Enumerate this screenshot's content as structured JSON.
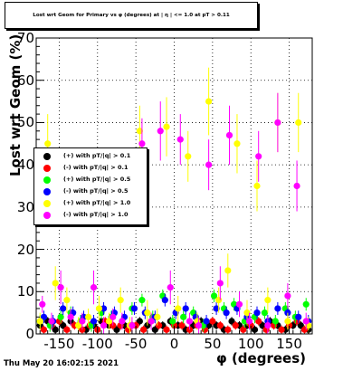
{
  "chart_data": {
    "type": "scatter",
    "title": "Lost wrt Geom for Primary vs φ (degrees) at | η | <= 1.0 at pT > 0.11",
    "xlabel": "φ (degrees)",
    "ylabel": "Lost wrt Geom (%)",
    "xlim": [
      -180,
      180
    ],
    "ylim": [
      0,
      70
    ],
    "x_ticks": [
      -150,
      -100,
      -50,
      0,
      50,
      100,
      150
    ],
    "y_ticks": [
      0,
      10,
      20,
      30,
      40,
      50,
      60,
      70
    ],
    "grid": true,
    "legend_position": "left-middle",
    "series": [
      {
        "name": "(+) with pT/|q| > 0.1",
        "color": "#000000",
        "x": [
          -175,
          -165,
          -155,
          -145,
          -135,
          -125,
          -115,
          -105,
          -95,
          -85,
          -75,
          -65,
          -55,
          -45,
          -35,
          -25,
          -15,
          -5,
          5,
          15,
          25,
          35,
          45,
          55,
          65,
          75,
          85,
          95,
          105,
          115,
          125,
          135,
          145,
          155,
          165,
          175
        ],
        "y": [
          2,
          3,
          1,
          2,
          3,
          2,
          1,
          2,
          3,
          2,
          1,
          2,
          2,
          3,
          2,
          1,
          2,
          3,
          2,
          1,
          2,
          3,
          2,
          2,
          1,
          3,
          2,
          2,
          1,
          2,
          3,
          2,
          1,
          2,
          2,
          1
        ],
        "err": [
          1,
          1,
          1,
          1,
          1,
          1,
          1,
          1,
          1,
          1,
          1,
          1,
          1,
          1,
          1,
          1,
          1,
          1,
          1,
          1,
          1,
          1,
          1,
          1,
          1,
          1,
          1,
          1,
          1,
          1,
          1,
          1,
          1,
          1,
          1,
          1
        ]
      },
      {
        "name": "(-) with pT/|q| > 0.1",
        "color": "#ff0000",
        "x": [
          -170,
          -160,
          -150,
          -140,
          -130,
          -120,
          -110,
          -100,
          -90,
          -80,
          -70,
          -60,
          -50,
          -40,
          -30,
          -20,
          -10,
          0,
          10,
          20,
          30,
          40,
          50,
          60,
          70,
          80,
          90,
          100,
          110,
          120,
          130,
          140,
          150,
          160,
          170
        ],
        "y": [
          1,
          2,
          3,
          1,
          2,
          1,
          2,
          1,
          3,
          2,
          2,
          1,
          2,
          1,
          3,
          2,
          1,
          2,
          2,
          1,
          2,
          1,
          3,
          2,
          1,
          2,
          1,
          2,
          3,
          1,
          2,
          1,
          2,
          3,
          1
        ],
        "err": [
          1,
          1,
          1,
          1,
          1,
          1,
          1,
          1,
          1,
          1,
          1,
          1,
          1,
          1,
          1,
          1,
          1,
          1,
          1,
          1,
          1,
          1,
          1,
          1,
          1,
          1,
          1,
          1,
          1,
          1,
          1,
          1,
          1,
          1,
          1
        ]
      },
      {
        "name": "(+) with pT/|q| > 0.5",
        "color": "#00ff00",
        "x": [
          -175,
          -162,
          -148,
          -135,
          -122,
          -108,
          -95,
          -82,
          -68,
          -55,
          -42,
          -28,
          -15,
          -2,
          12,
          25,
          38,
          52,
          65,
          78,
          92,
          105,
          118,
          132,
          145,
          158,
          172
        ],
        "y": [
          3,
          2,
          4,
          5,
          3,
          2,
          5,
          4,
          3,
          6,
          8,
          4,
          9,
          3,
          4,
          5,
          2,
          9,
          6,
          7,
          3,
          4,
          5,
          3,
          6,
          4,
          7
        ],
        "err": [
          1.5,
          1.5,
          1.5,
          1.5,
          1.5,
          1.5,
          1.5,
          1.5,
          1.5,
          1.5,
          1.5,
          1.5,
          1.5,
          1.5,
          1.5,
          1.5,
          1.5,
          1.5,
          1.5,
          1.5,
          1.5,
          1.5,
          1.5,
          1.5,
          1.5,
          1.5,
          1.5
        ]
      },
      {
        "name": "(-) with pT/|q| > 0.5",
        "color": "#0000ff",
        "x": [
          -170,
          -158,
          -145,
          -132,
          -118,
          -105,
          -92,
          -78,
          -65,
          -52,
          -38,
          -25,
          -12,
          2,
          15,
          28,
          42,
          55,
          68,
          82,
          95,
          108,
          122,
          135,
          148,
          162,
          175
        ],
        "y": [
          4,
          3,
          6,
          5,
          4,
          3,
          6,
          5,
          4,
          6,
          5,
          4,
          8,
          5,
          6,
          4,
          3,
          6,
          5,
          6,
          4,
          5,
          3,
          6,
          5,
          4,
          3
        ],
        "err": [
          1.5,
          1.5,
          1.5,
          1.5,
          1.5,
          1.5,
          1.5,
          1.5,
          1.5,
          1.5,
          1.5,
          1.5,
          1.5,
          1.5,
          1.5,
          1.5,
          1.5,
          1.5,
          1.5,
          1.5,
          1.5,
          1.5,
          1.5,
          1.5,
          1.5,
          1.5,
          1.5
        ]
      },
      {
        "name": "(+) with pT/|q| > 1.0",
        "color": "#ffff00",
        "x": [
          -175,
          -165,
          -155,
          -140,
          -125,
          -112,
          -98,
          -85,
          -70,
          -58,
          -45,
          -35,
          -22,
          -10,
          5,
          18,
          30,
          45,
          58,
          70,
          82,
          95,
          108,
          122,
          135,
          148,
          162,
          175
        ],
        "y": [
          3,
          45,
          12,
          8,
          2,
          4,
          6,
          3,
          8,
          2,
          48,
          5,
          4,
          49,
          6,
          42,
          3,
          55,
          8,
          15,
          45,
          5,
          35,
          8,
          50,
          3,
          50,
          2
        ],
        "err": [
          2,
          7,
          4,
          3,
          2,
          2,
          3,
          2,
          3,
          2,
          6,
          3,
          2,
          7,
          3,
          6,
          2,
          8,
          3,
          4,
          7,
          3,
          6,
          3,
          7,
          2,
          7,
          2
        ]
      },
      {
        "name": "(-) with pT/|q| > 1.0",
        "color": "#ff00ff",
        "x": [
          -172,
          -160,
          -148,
          -135,
          -120,
          -105,
          -92,
          -80,
          -68,
          -55,
          -42,
          -30,
          -18,
          -5,
          8,
          20,
          32,
          45,
          60,
          72,
          85,
          98,
          110,
          122,
          135,
          148,
          160,
          172
        ],
        "y": [
          7,
          3,
          11,
          4,
          3,
          11,
          2,
          4,
          3,
          2,
          45,
          3,
          48,
          11,
          46,
          3,
          2,
          40,
          12,
          47,
          7,
          3,
          42,
          2,
          50,
          9,
          35,
          3
        ],
        "err": [
          2,
          2,
          4,
          2,
          2,
          4,
          2,
          2,
          2,
          2,
          6,
          2,
          7,
          4,
          6,
          2,
          2,
          6,
          4,
          7,
          3,
          2,
          6,
          2,
          7,
          3,
          6,
          2
        ]
      }
    ]
  },
  "timestamp": "Thu May 20 16:02:15 2021"
}
